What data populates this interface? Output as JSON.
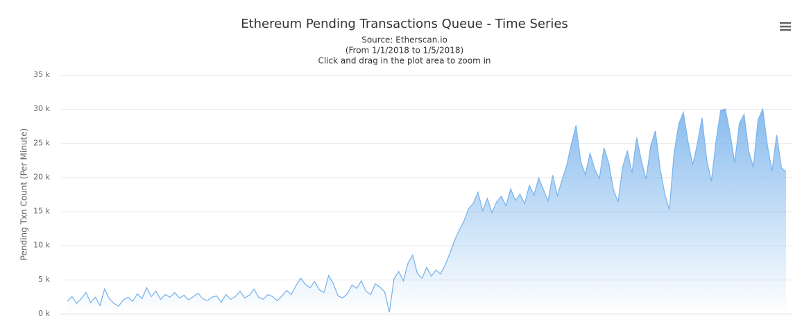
{
  "chart_data": {
    "type": "area",
    "title": "Ethereum Pending Transactions Queue - Time Series",
    "subtitle": [
      "Source: Etherscan.io",
      "(From 1/1/2018 to 1/5/2018)",
      "Click and drag in the plot area to zoom in"
    ],
    "y_label": "Pending Txn Count (Per Minute)",
    "color": "#7cb5ec",
    "grid": true,
    "ylim": [
      0,
      35000
    ],
    "yticks": [
      {
        "value": 0,
        "label": "0 k"
      },
      {
        "value": 5000,
        "label": "5 k"
      },
      {
        "value": 10000,
        "label": "10 k"
      },
      {
        "value": 15000,
        "label": "15 k"
      },
      {
        "value": 20000,
        "label": "20 k"
      },
      {
        "value": 25000,
        "label": "25 k"
      },
      {
        "value": 30000,
        "label": "30 k"
      },
      {
        "value": 35000,
        "label": "35 k"
      }
    ],
    "values": [
      1800,
      2500,
      1500,
      2200,
      3100,
      1600,
      2400,
      1200,
      3600,
      2200,
      1500,
      1100,
      2000,
      2400,
      1800,
      2900,
      2200,
      3800,
      2500,
      3300,
      2100,
      2800,
      2400,
      3100,
      2300,
      2700,
      2000,
      2500,
      3000,
      2200,
      1900,
      2400,
      2600,
      1700,
      2800,
      2100,
      2500,
      3300,
      2300,
      2700,
      3600,
      2400,
      2100,
      2800,
      2500,
      1900,
      2600,
      3400,
      2800,
      4100,
      5200,
      4300,
      3800,
      4700,
      3500,
      3100,
      5600,
      4400,
      2600,
      2300,
      2900,
      4200,
      3700,
      4800,
      3300,
      2800,
      4400,
      3900,
      3200,
      200,
      5100,
      6200,
      4800,
      7400,
      8600,
      5900,
      5200,
      6800,
      5500,
      6400,
      5800,
      7200,
      8900,
      10800,
      12300,
      13600,
      15400,
      16200,
      17800,
      15100,
      16900,
      14800,
      16400,
      17200,
      15800,
      18300,
      16600,
      17500,
      16100,
      18800,
      17400,
      19900,
      18200,
      16500,
      20300,
      17300,
      19600,
      21700,
      24800,
      27600,
      22300,
      20400,
      23500,
      21200,
      19800,
      24300,
      22100,
      18200,
      16400,
      21500,
      23900,
      20600,
      25800,
      22400,
      19700,
      24600,
      26800,
      21300,
      17600,
      15200,
      23400,
      27800,
      29500,
      25200,
      21800,
      24900,
      28700,
      22600,
      19400,
      25300,
      29800,
      30000,
      26400,
      22100,
      27900,
      29200,
      23800,
      21500,
      28400,
      30000,
      24700,
      20900,
      26200,
      21400,
      20800
    ]
  }
}
